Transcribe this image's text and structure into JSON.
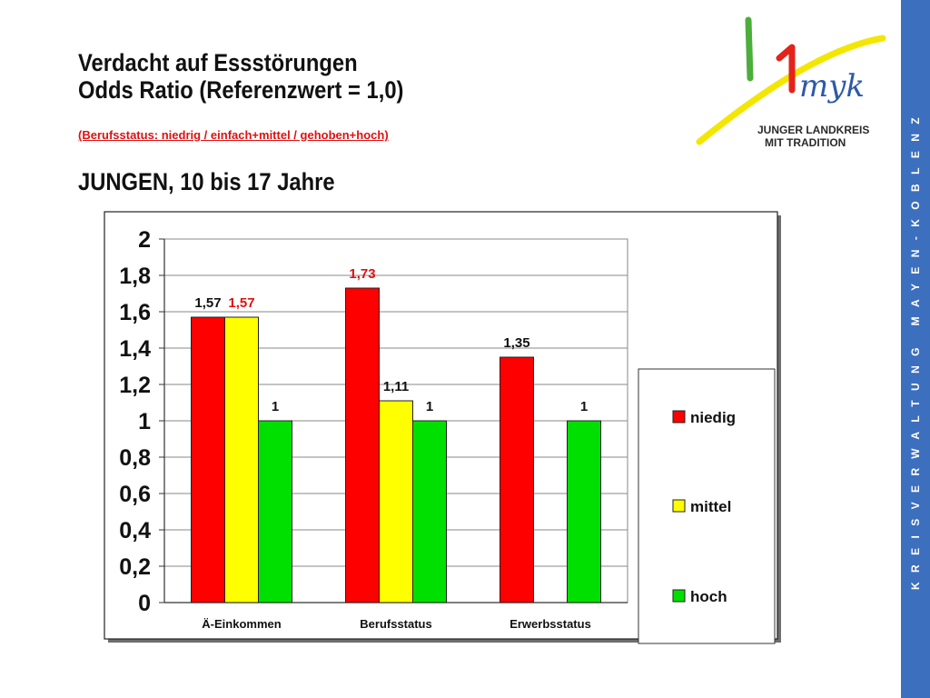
{
  "header": {
    "title_line1": "Verdacht auf Essstörungen",
    "title_line2": "Odds Ratio (Referenzwert = 1,0)",
    "subtitle": "(Berufsstatus: niedrig  /  einfach+mittel  /  gehoben+hoch)",
    "group_title": "JUNGEN, 10 bis 17 Jahre"
  },
  "logo": {
    "line1": "JUNGER LANDKREIS",
    "line2": "MIT TRADITION",
    "script_text": "myk",
    "colors": {
      "green": "#4cae3a",
      "red": "#e3241b",
      "yellow": "#f3e600",
      "blue": "#2d5aa8"
    }
  },
  "sidebar": {
    "text": "KREISVERWALTUNG MAYEN-KOBLENZ",
    "color": "#3d6fbf"
  },
  "chart_data": {
    "type": "bar",
    "categories": [
      "Ä-Einkommen",
      "Berufsstatus",
      "Erwerbsstatus"
    ],
    "series": [
      {
        "name": "niedig",
        "color": "#ff0000",
        "values": [
          1.57,
          1.73,
          1.35
        ],
        "labels": [
          "1,57",
          "1,73",
          "1,35"
        ],
        "label_colors": [
          "#111111",
          "#e01010",
          "#111111"
        ]
      },
      {
        "name": "mittel",
        "color": "#ffff00",
        "values": [
          1.57,
          1.11,
          null
        ],
        "labels": [
          "1,57",
          "1,11",
          ""
        ],
        "label_colors": [
          "#e01010",
          "#111111",
          "#111111"
        ]
      },
      {
        "name": "hoch",
        "color": "#00e000",
        "values": [
          1,
          1,
          1
        ],
        "labels": [
          "1",
          "1",
          "1"
        ],
        "label_colors": [
          "#111111",
          "#111111",
          "#111111"
        ]
      }
    ],
    "yticks": [
      "0",
      "0,2",
      "0,4",
      "0,6",
      "0,8",
      "1",
      "1,2",
      "1,4",
      "1,6",
      "1,8",
      "2"
    ],
    "ylim": [
      0,
      2
    ],
    "grid": true,
    "legend_position": "right"
  }
}
